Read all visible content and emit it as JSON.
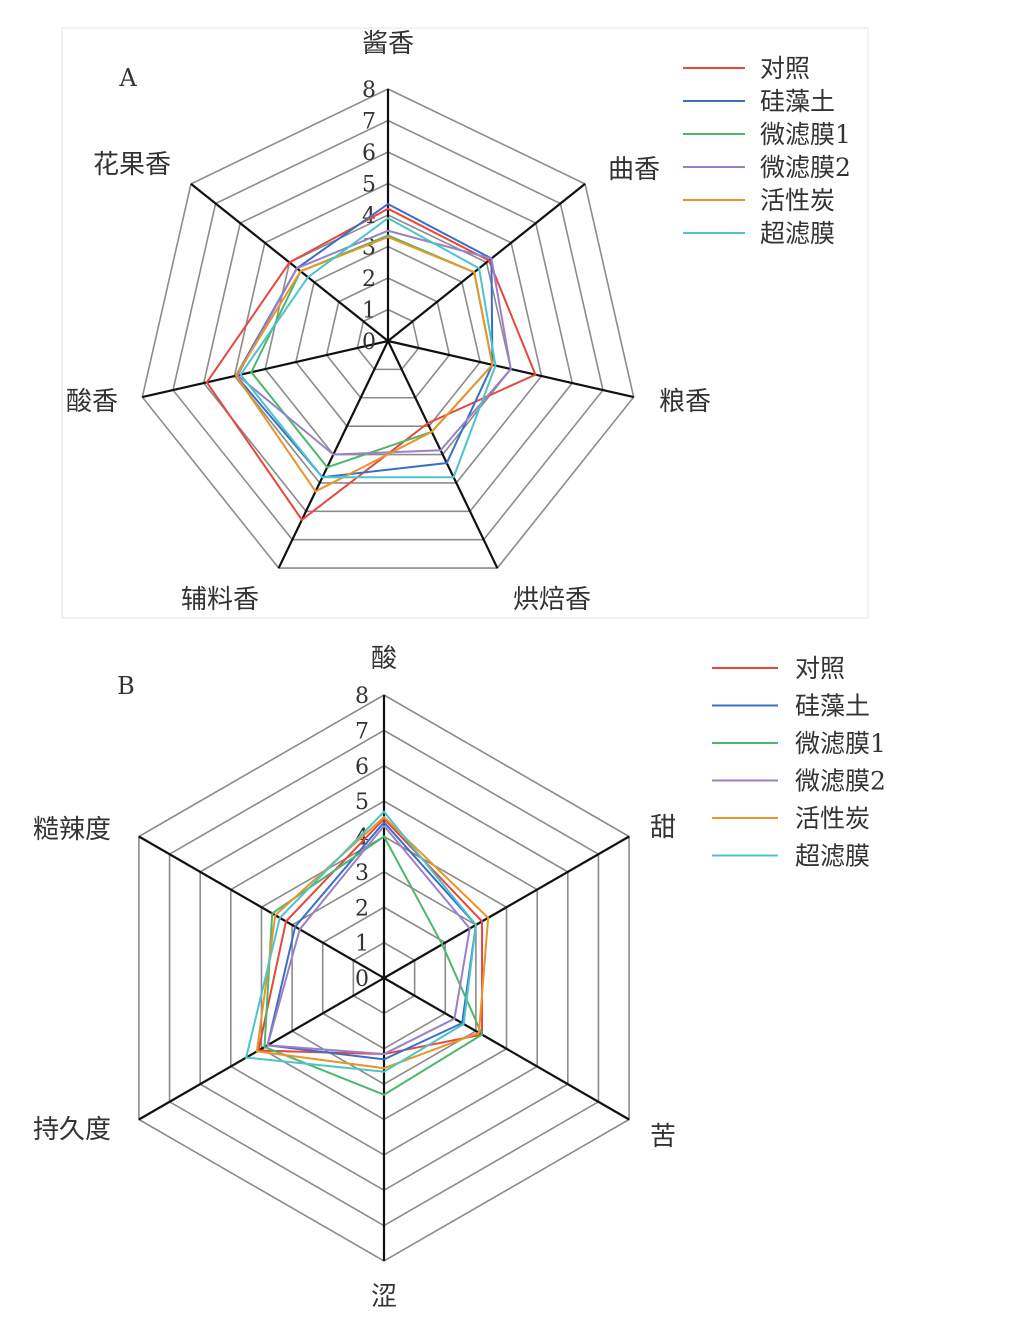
{
  "chart_data": [
    {
      "type": "radar",
      "panel_label": "A",
      "axes": [
        "酱香",
        "曲香",
        "粮香",
        "烘焙香",
        "辅料香",
        "酸香",
        "花果香"
      ],
      "rlim": [
        0,
        8
      ],
      "ticks": [
        "0",
        "1",
        "2",
        "3",
        "4",
        "5",
        "6",
        "7",
        "8"
      ],
      "grid": true,
      "legend_position": "top-right",
      "series": [
        {
          "name": "对照",
          "color": "#e8473d",
          "values": [
            4.2,
            4.1,
            4.8,
            2.9,
            6.3,
            5.9,
            4.0
          ]
        },
        {
          "name": "硅藻土",
          "color": "#3b6fc6",
          "values": [
            4.35,
            4.2,
            3.4,
            4.3,
            4.8,
            4.95,
            3.7
          ]
        },
        {
          "name": "微滤膜1",
          "color": "#4db86c",
          "values": [
            3.35,
            3.5,
            3.4,
            3.2,
            4.45,
            4.45,
            3.55
          ]
        },
        {
          "name": "微滤膜2",
          "color": "#9b80c9",
          "values": [
            3.5,
            4.2,
            4.0,
            3.85,
            4.0,
            4.9,
            3.7
          ]
        },
        {
          "name": "活性炭",
          "color": "#e8952b",
          "values": [
            3.3,
            3.5,
            3.4,
            3.2,
            5.3,
            4.95,
            3.55
          ]
        },
        {
          "name": "超滤膜",
          "color": "#4cc5c9",
          "values": [
            3.9,
            3.7,
            3.5,
            4.8,
            4.8,
            4.8,
            3.25
          ]
        }
      ]
    },
    {
      "type": "radar",
      "panel_label": "B",
      "axes": [
        "酸",
        "甜",
        "苦",
        "涩",
        "持久度",
        "糙辣度"
      ],
      "rlim": [
        0,
        8
      ],
      "ticks": [
        "0",
        "1",
        "2",
        "3",
        "4",
        "5",
        "6",
        "7",
        "8"
      ],
      "grid": true,
      "legend_position": "top-right",
      "series": [
        {
          "name": "对照",
          "color": "#e8473d",
          "values": [
            4.5,
            3.2,
            3.2,
            2.15,
            4.1,
            3.2
          ]
        },
        {
          "name": "硅藻土",
          "color": "#3b6fc6",
          "values": [
            4.4,
            3.0,
            2.55,
            2.3,
            3.8,
            2.9
          ]
        },
        {
          "name": "微滤膜1",
          "color": "#4db86c",
          "values": [
            4.0,
            1.9,
            3.2,
            3.3,
            3.9,
            3.65
          ]
        },
        {
          "name": "微滤膜2",
          "color": "#9b80c9",
          "values": [
            4.3,
            2.8,
            2.3,
            2.15,
            3.8,
            2.75
          ]
        },
        {
          "name": "活性炭",
          "color": "#e8952b",
          "values": [
            4.55,
            3.4,
            3.1,
            2.55,
            4.15,
            3.55
          ]
        },
        {
          "name": "超滤膜",
          "color": "#4cc5c9",
          "values": [
            4.7,
            3.0,
            2.6,
            2.65,
            4.5,
            3.4
          ]
        }
      ]
    }
  ]
}
